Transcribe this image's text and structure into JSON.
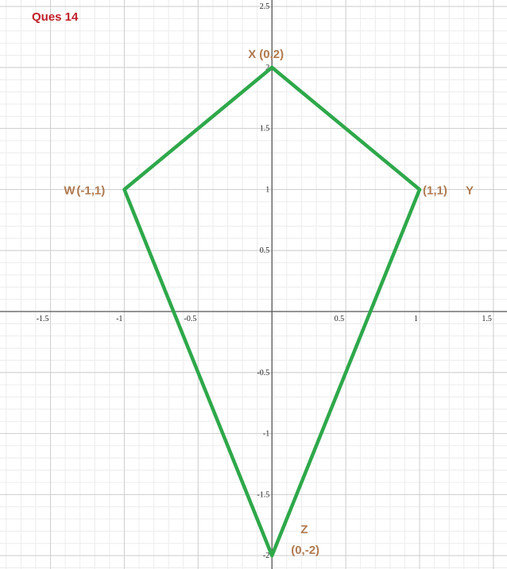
{
  "chart_data": {
    "type": "line",
    "title": "Ques 14",
    "x": [
      0,
      1,
      0,
      -1
    ],
    "series": [
      {
        "color": "#2ea84a",
        "values": [
          2,
          1,
          -2,
          1
        ]
      }
    ],
    "closed": true,
    "vertex_names": [
      "X",
      "Y",
      "Z",
      "W"
    ],
    "vertex_labels": [
      "(0,2)",
      "(1,1)",
      "(0,-2)",
      "(-1,1)"
    ],
    "xlim": [
      -1.842,
      1.592
    ],
    "ylim": [
      -2.11,
      2.553
    ],
    "xticks": [
      -1.5,
      -1,
      -0.5,
      0.5,
      1,
      1.5
    ],
    "yticks": [
      -2,
      -1.5,
      -1,
      -0.5,
      0.5,
      1,
      1.5,
      2,
      2.5
    ],
    "grid": true
  }
}
